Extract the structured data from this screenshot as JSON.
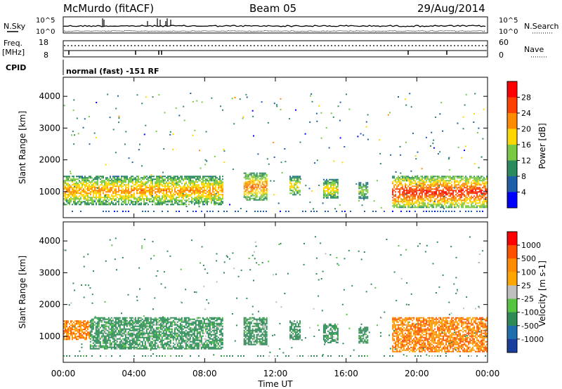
{
  "header": {
    "station": "McMurdo (fitACF)",
    "beam": "Beam 05",
    "date": "29/Aug/2014"
  },
  "summary_panels": {
    "nsky_label": "N.Sky",
    "nsearch_label": "N.Search",
    "nsky_ticks": [
      "10^5",
      "10^0"
    ],
    "nsearch_ticks": [
      "10^5",
      "10^0"
    ],
    "freq_label": "Freq.",
    "freq_unit": "[MHz]",
    "freq_ticks": [
      "18",
      "8"
    ],
    "nave_label": "Nave",
    "nave_ticks": [
      "60",
      "0"
    ],
    "cpid_label": "CPID",
    "cpid_text": "normal (fast) -151 RF"
  },
  "colors": {
    "power_scale": [
      "#0000ff",
      "#1f5ea8",
      "#2c8a5f",
      "#7ac943",
      "#ffd700",
      "#ff8c00",
      "#ff4000",
      "#ff0000"
    ],
    "velocity_scale": [
      "#1a3e9e",
      "#1f6fae",
      "#2e8b57",
      "#56c341",
      "#bfbfbf",
      "#ffa500",
      "#ff8c00",
      "#ff5000",
      "#ff0000"
    ]
  },
  "chart_data": [
    {
      "type": "heatmap",
      "name": "power",
      "xlabel": "Time UT",
      "ylabel": "Slant Range [km]",
      "x_ticks": [
        "00:00",
        "04:00",
        "08:00",
        "12:00",
        "16:00",
        "20:00",
        "00:00"
      ],
      "y_ticks": [
        1000,
        2000,
        3000,
        4000
      ],
      "ylim": [
        180,
        4600
      ],
      "xlim_hours": [
        0,
        24
      ],
      "colorbar_label": "Power [dB]",
      "colorbar_ticks": [
        4,
        8,
        12,
        16,
        20,
        24,
        28
      ],
      "colorbar_range": [
        0,
        30
      ],
      "patches": [
        {
          "t0": 0.0,
          "t1": 9.0,
          "r0": 600,
          "r1": 1500,
          "level": 0.55
        },
        {
          "t0": 10.2,
          "t1": 11.5,
          "r0": 750,
          "r1": 1600,
          "level": 0.6
        },
        {
          "t0": 12.8,
          "t1": 13.4,
          "r0": 900,
          "r1": 1500,
          "level": 0.45
        },
        {
          "t0": 14.7,
          "t1": 15.5,
          "r0": 800,
          "r1": 1400,
          "level": 0.45
        },
        {
          "t0": 16.7,
          "t1": 17.2,
          "r0": 800,
          "r1": 1300,
          "level": 0.35
        },
        {
          "t0": 18.6,
          "t1": 24.0,
          "r0": 500,
          "r1": 1500,
          "level": 0.75
        }
      ]
    },
    {
      "type": "heatmap",
      "name": "velocity",
      "xlabel": "Time UT",
      "ylabel": "Slant Range [km]",
      "x_ticks": [
        "00:00",
        "04:00",
        "08:00",
        "12:00",
        "16:00",
        "20:00",
        "00:00"
      ],
      "y_ticks": [
        1000,
        2000,
        3000,
        4000
      ],
      "ylim": [
        180,
        4600
      ],
      "xlim_hours": [
        0,
        24
      ],
      "colorbar_label": "Velocity [m s-1]",
      "colorbar_ticks": [
        1000,
        500,
        100,
        25,
        -25,
        -100,
        -500,
        -1000
      ],
      "patches": [
        {
          "t0": 0.0,
          "t1": 1.5,
          "r0": 900,
          "r1": 1500,
          "level": -0.6
        },
        {
          "t0": 1.5,
          "t1": 9.0,
          "r0": 600,
          "r1": 1600,
          "level": 0.35
        },
        {
          "t0": 10.2,
          "t1": 11.5,
          "r0": 750,
          "r1": 1600,
          "level": 0.3
        },
        {
          "t0": 12.8,
          "t1": 13.4,
          "r0": 900,
          "r1": 1500,
          "level": 0.25
        },
        {
          "t0": 14.7,
          "t1": 15.5,
          "r0": 800,
          "r1": 1400,
          "level": 0.25
        },
        {
          "t0": 16.7,
          "t1": 17.2,
          "r0": 800,
          "r1": 1300,
          "level": 0.2
        },
        {
          "t0": 18.6,
          "t1": 24.0,
          "r0": 500,
          "r1": 1600,
          "level": -0.7
        }
      ]
    }
  ]
}
